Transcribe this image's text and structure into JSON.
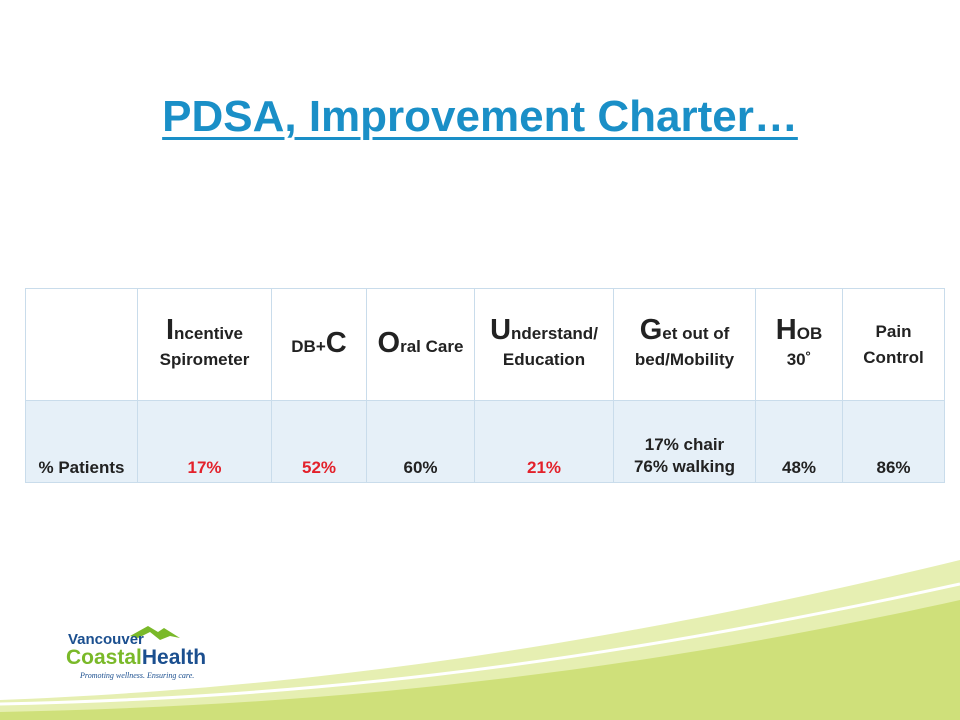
{
  "slide": {
    "title": "PDSA, Improvement Charter…"
  },
  "table": {
    "headers": [
      {
        "big": "",
        "rest": "",
        "line2": ""
      },
      {
        "big": "I",
        "rest": "ncentive",
        "line2": "Spirometer"
      },
      {
        "pre": "DB+",
        "big": "C"
      },
      {
        "big": "O",
        "rest": "ral Care"
      },
      {
        "big": "U",
        "rest": "nderstand/",
        "line2": "Education"
      },
      {
        "big": "G",
        "rest": "et out of",
        "line2": "bed/Mobility"
      },
      {
        "big": "H",
        "rest": "OB",
        "line2": "30˚"
      },
      {
        "line1": "Pain",
        "line2": "Control"
      }
    ],
    "row": {
      "label": "% Patients",
      "incentive_spirometer": "17%",
      "db_c": "52%",
      "oral_care": "60%",
      "understand_education": "21%",
      "mobility_chair": "17% chair",
      "mobility_walking": "76% walking",
      "hob": "48%",
      "pain_control": "86%"
    }
  },
  "logo": {
    "line1": "Vancouver",
    "line2_a": "Coastal",
    "line2_b": "Health",
    "tagline": "Promoting wellness. Ensuring care."
  },
  "colors": {
    "title": "#1a8fc7",
    "highlight": "#e3212b",
    "band": "#cfe07a",
    "logo_blue": "#1b4f8f",
    "logo_green": "#7ab929"
  }
}
